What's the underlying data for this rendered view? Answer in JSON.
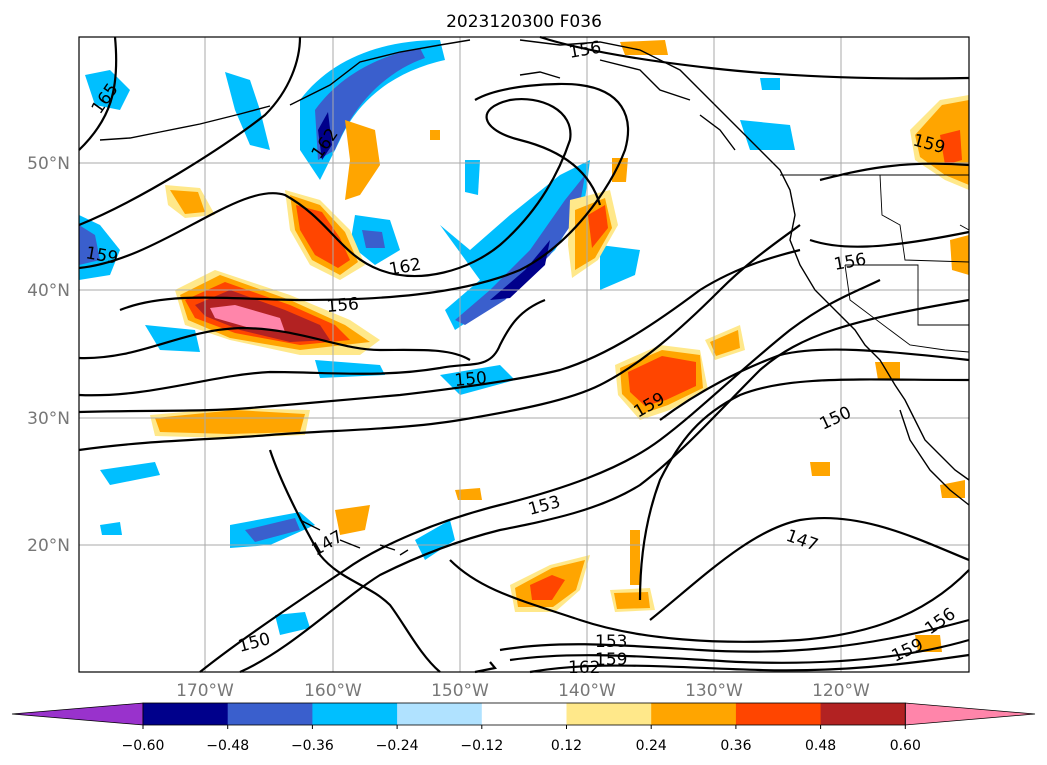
{
  "title": "2023120300 F036",
  "map": {
    "lat_labels": [
      "50°N",
      "40°N",
      "30°N",
      "20°N"
    ],
    "lon_labels": [
      "170°W",
      "160°W",
      "150°W",
      "140°W",
      "130°W",
      "120°W"
    ],
    "contour_labels": [
      "165",
      "162",
      "159",
      "156",
      "162",
      "156",
      "150",
      "159",
      "156",
      "150",
      "153",
      "147",
      "147",
      "150",
      "153",
      "159",
      "162",
      "159",
      "156"
    ]
  },
  "colorbar": {
    "levels": [
      "−0.60",
      "−0.48",
      "−0.36",
      "−0.24",
      "−0.12",
      "0.12",
      "0.24",
      "0.36",
      "0.48",
      "0.60"
    ],
    "colors": [
      "#9932cc",
      "#00008b",
      "#3a5fcd",
      "#00bfff",
      "#b0e2ff",
      "#ffffff",
      "#ffe88a",
      "#ffa500",
      "#ff4500",
      "#b22222",
      "#ff85aa"
    ]
  }
}
